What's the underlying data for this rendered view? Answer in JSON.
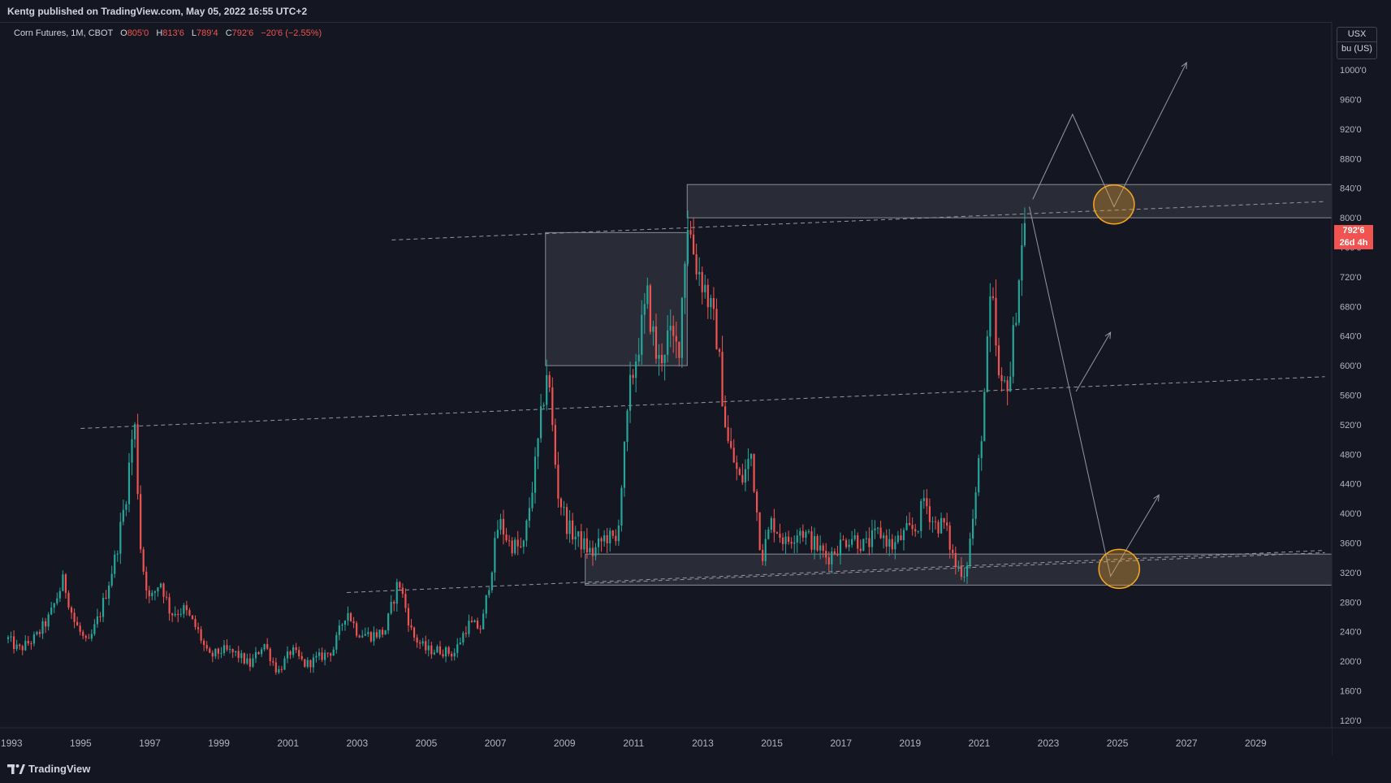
{
  "header": {
    "publisher_line": "Kentg published on TradingView.com, May 05, 2022 16:55 UTC+2"
  },
  "legend": {
    "symbol": "Corn Futures, 1M, CBOT",
    "open_label": "O",
    "open": "805'0",
    "high_label": "H",
    "high": "813'6",
    "low_label": "L",
    "low": "789'4",
    "close_label": "C",
    "close": "792'6",
    "change": "−20'6 (−2.55%)"
  },
  "unit": {
    "currency": "USX",
    "unit": "bu (US)"
  },
  "price_tag": {
    "price": "792'6",
    "countdown": "26d 4h"
  },
  "footer": {
    "brand": "TradingView"
  },
  "colors": {
    "up": "#26a69a",
    "down": "#f05350",
    "background": "#141722",
    "highlight": "#f5a623"
  },
  "chart_data": {
    "type": "candlestick",
    "title": "Corn Futures, 1M, CBOT",
    "xlabel": "",
    "ylabel": "",
    "x_range": [
      1992.9,
      2031.2
    ],
    "ylim": [
      110,
      1065
    ],
    "x_ticks": [
      "1993",
      "1995",
      "1997",
      "1999",
      "2001",
      "2003",
      "2005",
      "2007",
      "2009",
      "2011",
      "2013",
      "2015",
      "2017",
      "2019",
      "2021",
      "2023",
      "2025",
      "2027",
      "2029"
    ],
    "y_ticks": [
      "1000'0",
      "960'0",
      "920'0",
      "880'0",
      "840'0",
      "800'0",
      "760'0",
      "720'0",
      "680'0",
      "640'0",
      "600'0",
      "560'0",
      "520'0",
      "480'0",
      "440'0",
      "400'0",
      "360'0",
      "320'0",
      "280'0",
      "240'0",
      "200'0",
      "160'0",
      "120'0"
    ],
    "y_tick_values": [
      1000,
      960,
      920,
      880,
      840,
      800,
      760,
      720,
      680,
      640,
      600,
      560,
      520,
      480,
      440,
      400,
      360,
      320,
      280,
      240,
      200,
      160,
      120
    ],
    "price_anchors": [
      [
        1992.9,
        230
      ],
      [
        1993.2,
        215
      ],
      [
        1993.7,
        232
      ],
      [
        1994.1,
        260
      ],
      [
        1994.5,
        310
      ],
      [
        1994.8,
        255
      ],
      [
        1995.2,
        220
      ],
      [
        1995.6,
        270
      ],
      [
        1996.0,
        340
      ],
      [
        1996.3,
        420
      ],
      [
        1996.55,
        530
      ],
      [
        1996.75,
        340
      ],
      [
        1997.0,
        280
      ],
      [
        1997.3,
        310
      ],
      [
        1997.6,
        265
      ],
      [
        1998.0,
        270
      ],
      [
        1998.4,
        240
      ],
      [
        1998.7,
        205
      ],
      [
        1999.1,
        215
      ],
      [
        1999.5,
        210
      ],
      [
        1999.9,
        195
      ],
      [
        2000.3,
        225
      ],
      [
        2000.7,
        185
      ],
      [
        2001.1,
        215
      ],
      [
        2001.5,
        195
      ],
      [
        2001.9,
        205
      ],
      [
        2002.3,
        215
      ],
      [
        2002.7,
        270
      ],
      [
        2003.0,
        240
      ],
      [
        2003.4,
        235
      ],
      [
        2003.8,
        240
      ],
      [
        2004.2,
        310
      ],
      [
        2004.6,
        235
      ],
      [
        2005.0,
        215
      ],
      [
        2005.4,
        215
      ],
      [
        2005.8,
        210
      ],
      [
        2006.2,
        250
      ],
      [
        2006.6,
        245
      ],
      [
        2006.9,
        330
      ],
      [
        2007.1,
        390
      ],
      [
        2007.4,
        360
      ],
      [
        2007.8,
        350
      ],
      [
        2008.2,
        480
      ],
      [
        2008.5,
        600
      ],
      [
        2008.8,
        430
      ],
      [
        2009.1,
        380
      ],
      [
        2009.5,
        360
      ],
      [
        2009.8,
        345
      ],
      [
        2010.2,
        370
      ],
      [
        2010.5,
        360
      ],
      [
        2010.9,
        570
      ],
      [
        2011.1,
        620
      ],
      [
        2011.4,
        690
      ],
      [
        2011.7,
        600
      ],
      [
        2012.0,
        640
      ],
      [
        2012.3,
        620
      ],
      [
        2012.55,
        800
      ],
      [
        2012.8,
        740
      ],
      [
        2013.1,
        700
      ],
      [
        2013.4,
        640
      ],
      [
        2013.7,
        500
      ],
      [
        2014.1,
        440
      ],
      [
        2014.4,
        480
      ],
      [
        2014.7,
        340
      ],
      [
        2015.0,
        390
      ],
      [
        2015.4,
        360
      ],
      [
        2015.8,
        380
      ],
      [
        2016.2,
        360
      ],
      [
        2016.6,
        340
      ],
      [
        2016.9,
        355
      ],
      [
        2017.3,
        370
      ],
      [
        2017.7,
        355
      ],
      [
        2018.1,
        375
      ],
      [
        2018.5,
        355
      ],
      [
        2018.9,
        375
      ],
      [
        2019.2,
        380
      ],
      [
        2019.4,
        420
      ],
      [
        2019.7,
        385
      ],
      [
        2020.0,
        385
      ],
      [
        2020.3,
        330
      ],
      [
        2020.6,
        320
      ],
      [
        2020.9,
        420
      ],
      [
        2021.1,
        530
      ],
      [
        2021.35,
        700
      ],
      [
        2021.6,
        560
      ],
      [
        2021.9,
        590
      ],
      [
        2022.1,
        700
      ],
      [
        2022.33,
        800
      ]
    ],
    "current_price": 792.75,
    "zones": [
      {
        "x": [
          2012.55,
          2031.2
        ],
        "y": [
          800,
          845
        ]
      },
      {
        "x": [
          2009.6,
          2031.2
        ],
        "y": [
          303,
          345
        ]
      },
      {
        "x": [
          2008.45,
          2012.55
        ],
        "y": [
          600,
          780
        ]
      }
    ],
    "dashed_lines": [
      {
        "x1": 2004.0,
        "y1": 770,
        "x2": 2031.0,
        "y2": 822
      },
      {
        "x1": 1995.0,
        "y1": 515,
        "x2": 2031.0,
        "y2": 585
      },
      {
        "x1": 2002.7,
        "y1": 293,
        "x2": 2031.0,
        "y2": 350
      },
      {
        "x1": 2009.6,
        "y1": 305,
        "x2": 2031.0,
        "y2": 347
      }
    ],
    "projection_lines": [
      [
        [
          2022.55,
          825
        ],
        [
          2023.7,
          940
        ],
        [
          2024.9,
          815
        ],
        [
          2027.0,
          1010
        ]
      ],
      [
        [
          2022.45,
          815
        ],
        [
          2024.8,
          315
        ],
        [
          2026.2,
          425
        ]
      ],
      [
        [
          2023.8,
          565
        ],
        [
          2024.8,
          645
        ]
      ]
    ],
    "highlight_circles": [
      {
        "x": 2024.9,
        "y": 818
      },
      {
        "x": 2025.05,
        "y": 325
      }
    ]
  }
}
